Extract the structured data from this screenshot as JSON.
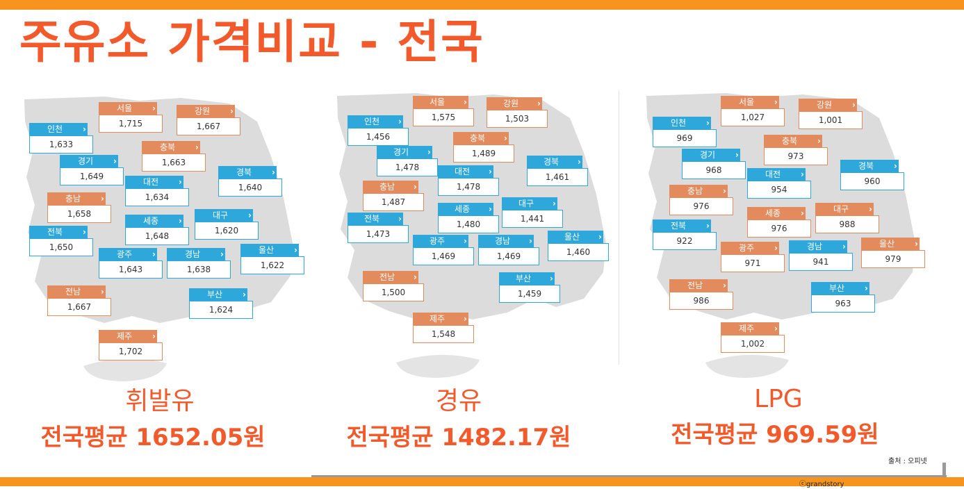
{
  "title": "주유소 가격비교 - 전국",
  "panels": [
    {
      "fuel": "휘발유",
      "average": "전국평균 1652.05원",
      "regions": [
        {
          "name": "서울",
          "price": "1,715",
          "color": "orange"
        },
        {
          "name": "강원",
          "price": "1,667",
          "color": "orange"
        },
        {
          "name": "인천",
          "price": "1,633",
          "color": "blue"
        },
        {
          "name": "충북",
          "price": "1,663",
          "color": "orange"
        },
        {
          "name": "경기",
          "price": "1,649",
          "color": "blue"
        },
        {
          "name": "경북",
          "price": "1,640",
          "color": "blue"
        },
        {
          "name": "대전",
          "price": "1,634",
          "color": "blue"
        },
        {
          "name": "충남",
          "price": "1,658",
          "color": "orange"
        },
        {
          "name": "대구",
          "price": "1,620",
          "color": "blue"
        },
        {
          "name": "세종",
          "price": "1,648",
          "color": "blue"
        },
        {
          "name": "전북",
          "price": "1,650",
          "color": "blue"
        },
        {
          "name": "울산",
          "price": "1,622",
          "color": "blue"
        },
        {
          "name": "광주",
          "price": "1,643",
          "color": "blue"
        },
        {
          "name": "경남",
          "price": "1,638",
          "color": "blue"
        },
        {
          "name": "전남",
          "price": "1,667",
          "color": "orange"
        },
        {
          "name": "부산",
          "price": "1,624",
          "color": "blue"
        },
        {
          "name": "제주",
          "price": "1,702",
          "color": "orange"
        }
      ]
    },
    {
      "fuel": "경유",
      "average": "전국평균 1482.17원",
      "regions": [
        {
          "name": "서울",
          "price": "1,575",
          "color": "orange"
        },
        {
          "name": "강원",
          "price": "1,503",
          "color": "orange"
        },
        {
          "name": "인천",
          "price": "1,456",
          "color": "blue"
        },
        {
          "name": "충북",
          "price": "1,489",
          "color": "orange"
        },
        {
          "name": "경기",
          "price": "1,478",
          "color": "blue"
        },
        {
          "name": "경북",
          "price": "1,461",
          "color": "blue"
        },
        {
          "name": "대전",
          "price": "1,478",
          "color": "blue"
        },
        {
          "name": "충남",
          "price": "1,487",
          "color": "orange"
        },
        {
          "name": "대구",
          "price": "1,441",
          "color": "blue"
        },
        {
          "name": "세종",
          "price": "1,480",
          "color": "blue"
        },
        {
          "name": "전북",
          "price": "1,473",
          "color": "blue"
        },
        {
          "name": "울산",
          "price": "1,460",
          "color": "blue"
        },
        {
          "name": "광주",
          "price": "1,469",
          "color": "blue"
        },
        {
          "name": "경남",
          "price": "1,469",
          "color": "blue"
        },
        {
          "name": "전남",
          "price": "1,500",
          "color": "orange"
        },
        {
          "name": "부산",
          "price": "1,459",
          "color": "blue"
        },
        {
          "name": "제주",
          "price": "1,548",
          "color": "orange"
        }
      ]
    },
    {
      "fuel": "LPG",
      "average": "전국평균 969.59원",
      "regions": [
        {
          "name": "서울",
          "price": "1,027",
          "color": "orange"
        },
        {
          "name": "강원",
          "price": "1,001",
          "color": "orange"
        },
        {
          "name": "인천",
          "price": "969",
          "color": "blue"
        },
        {
          "name": "충북",
          "price": "973",
          "color": "orange"
        },
        {
          "name": "경기",
          "price": "968",
          "color": "blue"
        },
        {
          "name": "경북",
          "price": "960",
          "color": "blue"
        },
        {
          "name": "대전",
          "price": "954",
          "color": "blue"
        },
        {
          "name": "충남",
          "price": "976",
          "color": "orange"
        },
        {
          "name": "대구",
          "price": "988",
          "color": "orange"
        },
        {
          "name": "세종",
          "price": "976",
          "color": "orange"
        },
        {
          "name": "전북",
          "price": "922",
          "color": "blue"
        },
        {
          "name": "울산",
          "price": "979",
          "color": "orange"
        },
        {
          "name": "광주",
          "price": "971",
          "color": "orange"
        },
        {
          "name": "경남",
          "price": "941",
          "color": "blue"
        },
        {
          "name": "전남",
          "price": "986",
          "color": "orange"
        },
        {
          "name": "부산",
          "price": "963",
          "color": "blue"
        },
        {
          "name": "제주",
          "price": "1,002",
          "color": "orange"
        }
      ]
    }
  ],
  "source": "출처 : 오피넷",
  "copyright": "ⓒgrandstory",
  "colors": {
    "accent": "#F7941D",
    "title": "#F25A2B",
    "blue": "#2EA7DA",
    "orange": "#E48B5E"
  }
}
